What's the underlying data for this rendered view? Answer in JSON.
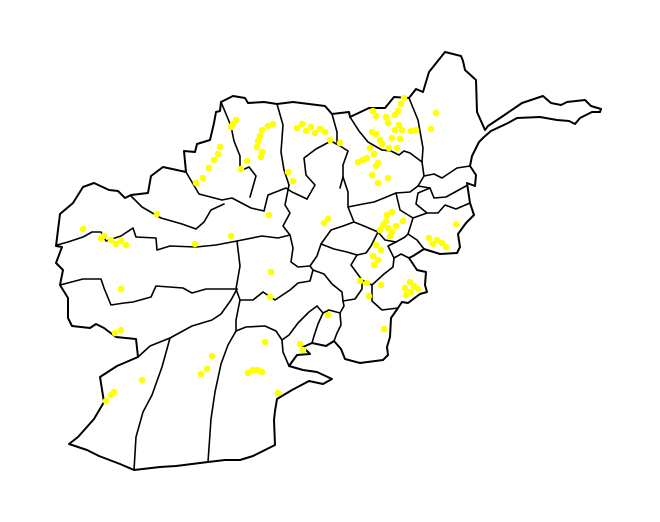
{
  "map": {
    "point_color": "#ffff00",
    "boundary_color": "#000000",
    "background": "#ffffff",
    "point_count": 120
  }
}
